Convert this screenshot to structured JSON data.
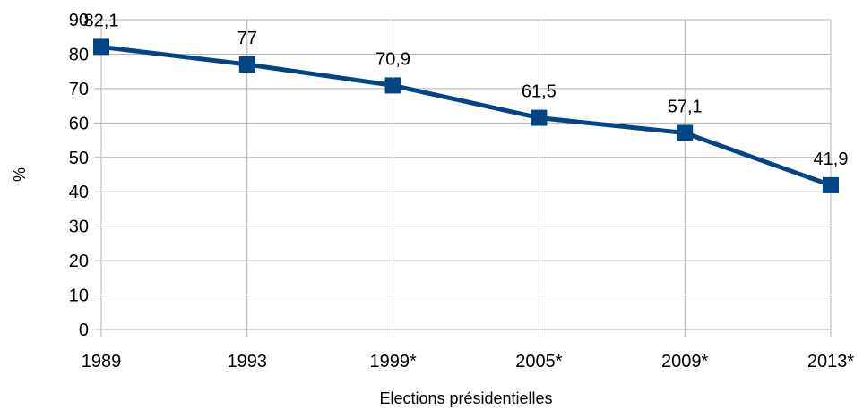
{
  "chart_data": {
    "type": "line",
    "title": "",
    "xlabel": "Elections présidentielles",
    "ylabel": "%",
    "categories": [
      "1989",
      "1993",
      "1999*",
      "2005*",
      "2009*",
      "2013*"
    ],
    "series": [
      {
        "values": [
          82.1,
          77,
          70.9,
          61.5,
          57.1,
          41.9
        ]
      }
    ],
    "data_labels": [
      "82,1",
      "77",
      "70,9",
      "61,5",
      "57,1",
      "41,9"
    ],
    "y_ticks": [
      0,
      10,
      20,
      30,
      40,
      50,
      60,
      70,
      80,
      90
    ],
    "ylim": [
      0,
      90
    ],
    "grid": true,
    "legend": "none",
    "colors": {
      "series": "#004586",
      "grid": "#b3b3b3",
      "axis": "#b3b3b3"
    }
  }
}
